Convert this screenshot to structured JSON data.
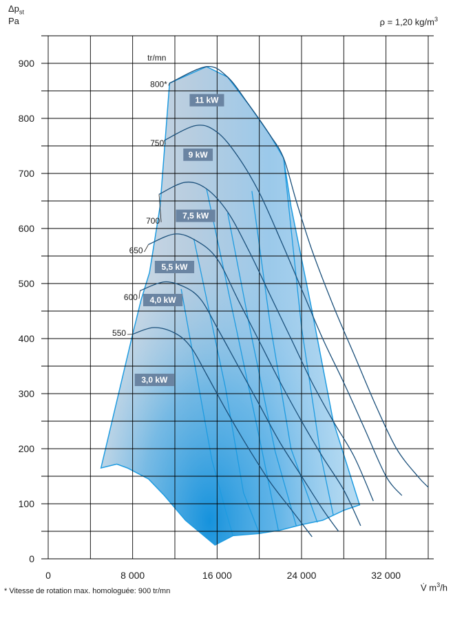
{
  "chart_data": {
    "type": "line",
    "ylabel_symbol": "Δp",
    "ylabel_sub": "st",
    "ylabel_unit": "Pa",
    "xlabel": "V̇ m",
    "xlabel_sup": "3",
    "xlabel_tail": "/h",
    "density_note": "ρ = 1,20 kg/m",
    "density_sup": "3",
    "speed_unit": "tr/mn",
    "footnote": "*  Vitesse de rotation max. homologuée: 900 tr/mn",
    "xlim": [
      0,
      36000
    ],
    "ylim": [
      0,
      950
    ],
    "x_ticks": [
      {
        "v": 0,
        "label": "0"
      },
      {
        "v": 8000,
        "label": "8 000"
      },
      {
        "v": 16000,
        "label": "16 000"
      },
      {
        "v": 24000,
        "label": "24 000"
      },
      {
        "v": 32000,
        "label": "32 000"
      }
    ],
    "y_ticks": [
      {
        "v": 0,
        "label": "0"
      },
      {
        "v": 100,
        "label": "100"
      },
      {
        "v": 200,
        "label": "200"
      },
      {
        "v": 300,
        "label": "300"
      },
      {
        "v": 400,
        "label": "400"
      },
      {
        "v": 500,
        "label": "500"
      },
      {
        "v": 600,
        "label": "600"
      },
      {
        "v": 700,
        "label": "700"
      },
      {
        "v": 800,
        "label": "800"
      },
      {
        "v": 900,
        "label": "900"
      }
    ],
    "grid": true,
    "series": [
      {
        "name": "550",
        "points": [
          [
            8000,
            408
          ],
          [
            10000,
            420
          ],
          [
            12000,
            410
          ],
          [
            13500,
            385
          ],
          [
            15000,
            335
          ],
          [
            17000,
            265
          ],
          [
            19000,
            200
          ],
          [
            21000,
            140
          ],
          [
            23000,
            90
          ],
          [
            25000,
            40
          ]
        ]
      },
      {
        "name": "600",
        "points": [
          [
            8700,
            487
          ],
          [
            11000,
            503
          ],
          [
            13000,
            493
          ],
          [
            14500,
            470
          ],
          [
            16000,
            420
          ],
          [
            18000,
            350
          ],
          [
            20000,
            280
          ],
          [
            22000,
            210
          ],
          [
            24000,
            150
          ],
          [
            26000,
            90
          ],
          [
            27500,
            50
          ]
        ]
      },
      {
        "name": "650",
        "points": [
          [
            9500,
            571
          ],
          [
            12000,
            590
          ],
          [
            14000,
            578
          ],
          [
            16000,
            545
          ],
          [
            18000,
            470
          ],
          [
            20000,
            395
          ],
          [
            22000,
            320
          ],
          [
            24000,
            250
          ],
          [
            26000,
            185
          ],
          [
            28000,
            125
          ],
          [
            29600,
            60
          ]
        ]
      },
      {
        "name": "700",
        "points": [
          [
            10500,
            662
          ],
          [
            13000,
            684
          ],
          [
            15000,
            672
          ],
          [
            17000,
            630
          ],
          [
            19000,
            560
          ],
          [
            21000,
            480
          ],
          [
            23000,
            400
          ],
          [
            25000,
            320
          ],
          [
            27000,
            250
          ],
          [
            29000,
            185
          ],
          [
            30800,
            105
          ]
        ]
      },
      {
        "name": "750",
        "points": [
          [
            11000,
            760
          ],
          [
            14000,
            787
          ],
          [
            16000,
            775
          ],
          [
            18000,
            730
          ],
          [
            20000,
            665
          ],
          [
            22000,
            580
          ],
          [
            24000,
            490
          ],
          [
            26000,
            400
          ],
          [
            28000,
            320
          ],
          [
            30000,
            235
          ],
          [
            32000,
            150
          ],
          [
            33500,
            115
          ]
        ]
      },
      {
        "name": "800*",
        "points": [
          [
            11500,
            864
          ],
          [
            15000,
            894
          ],
          [
            17000,
            875
          ],
          [
            19000,
            825
          ],
          [
            21000,
            770
          ],
          [
            22300,
            728
          ],
          [
            23500,
            650
          ],
          [
            25000,
            560
          ],
          [
            27000,
            460
          ],
          [
            29000,
            370
          ],
          [
            31000,
            280
          ],
          [
            33000,
            200
          ],
          [
            35000,
            150
          ],
          [
            36000,
            130
          ]
        ]
      }
    ],
    "speed_labels": [
      {
        "label": "550",
        "x": 6200,
        "y": 410
      },
      {
        "label": "600",
        "x": 7300,
        "y": 475
      },
      {
        "label": "650",
        "x": 7800,
        "y": 560
      },
      {
        "label": "700",
        "x": 9400,
        "y": 614
      },
      {
        "label": "750",
        "x": 9800,
        "y": 755
      },
      {
        "label": "800*",
        "x": 10100,
        "y": 862
      }
    ],
    "motor_powers": [
      {
        "label": "3,0 kW",
        "x": 8200,
        "y": 325
      },
      {
        "label": "4,0 kW",
        "x": 9000,
        "y": 470
      },
      {
        "label": "5,5 kW",
        "x": 10100,
        "y": 530
      },
      {
        "label": "7,5 kW",
        "x": 12100,
        "y": 623
      },
      {
        "label": "9 kW",
        "x": 12800,
        "y": 734
      },
      {
        "label": "11 kW",
        "x": 13400,
        "y": 833
      }
    ],
    "envelope": [
      [
        5000,
        165
      ],
      [
        6500,
        172
      ],
      [
        7500,
        165
      ],
      [
        9500,
        145
      ],
      [
        11000,
        115
      ],
      [
        13000,
        70
      ],
      [
        15800,
        25
      ],
      [
        17500,
        42
      ],
      [
        20000,
        46
      ],
      [
        22000,
        52
      ],
      [
        24000,
        62
      ],
      [
        26000,
        70
      ],
      [
        28000,
        88
      ],
      [
        29500,
        98
      ],
      [
        27000,
        250
      ],
      [
        25000,
        450
      ],
      [
        23000,
        640
      ],
      [
        22300,
        728
      ],
      [
        21000,
        770
      ],
      [
        19000,
        825
      ],
      [
        17000,
        875
      ],
      [
        15000,
        894
      ],
      [
        11500,
        864
      ],
      [
        10600,
        640
      ],
      [
        9600,
        520
      ],
      [
        8800,
        470
      ],
      [
        8000,
        408
      ]
    ],
    "operating_limits": [
      [
        [
          12600,
          490
        ],
        [
          15500,
          180
        ],
        [
          16700,
          95
        ],
        [
          17500,
          42
        ]
      ],
      [
        [
          13800,
          581
        ],
        [
          16800,
          310
        ],
        [
          18500,
          120
        ],
        [
          20000,
          46
        ]
      ],
      [
        [
          15000,
          672
        ],
        [
          17800,
          420
        ],
        [
          20000,
          220
        ],
        [
          21800,
          52
        ]
      ],
      [
        [
          17000,
          628
        ],
        [
          19200,
          410
        ],
        [
          21500,
          195
        ],
        [
          23500,
          60
        ]
      ],
      [
        [
          19300,
          668
        ],
        [
          21000,
          430
        ],
        [
          23000,
          200
        ],
        [
          25500,
          66
        ]
      ],
      [
        [
          22300,
          728
        ],
        [
          24000,
          420
        ],
        [
          25800,
          190
        ],
        [
          27000,
          80
        ]
      ]
    ],
    "colors": {
      "grid": "#000000",
      "envelope_stroke": "#1e9be0",
      "curve": "#1a4f7a",
      "label_box": "#6a84a2",
      "label_text": "#ffffff"
    }
  }
}
